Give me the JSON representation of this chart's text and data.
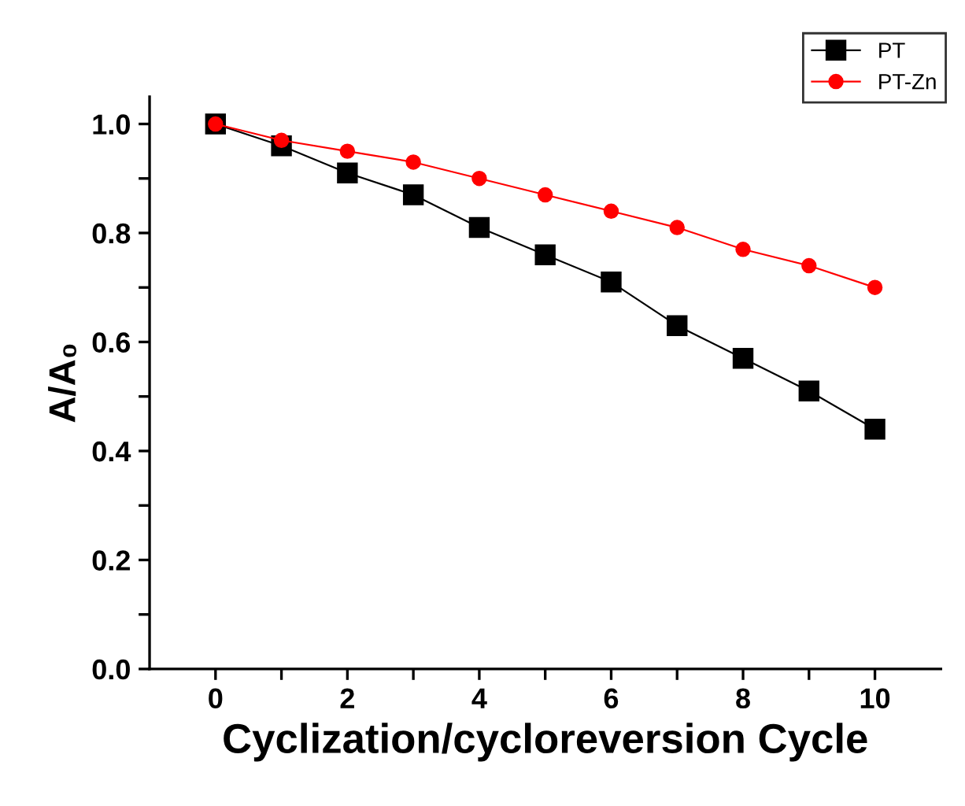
{
  "chart_data": {
    "type": "line",
    "xlabel": "Cyclization/cycloreversion Cycle",
    "ylabel": "A/A₀",
    "x": [
      0,
      1,
      2,
      3,
      4,
      5,
      6,
      7,
      8,
      9,
      10
    ],
    "series": [
      {
        "name": "PT",
        "color": "#000000",
        "marker": "square",
        "values": [
          1.0,
          0.96,
          0.91,
          0.87,
          0.81,
          0.76,
          0.71,
          0.63,
          0.57,
          0.51,
          0.44
        ]
      },
      {
        "name": "PT-Zn",
        "color": "#ff0000",
        "marker": "circle",
        "values": [
          1.0,
          0.97,
          0.95,
          0.93,
          0.9,
          0.87,
          0.84,
          0.81,
          0.77,
          0.74,
          0.7
        ]
      }
    ],
    "xlim": [
      -1,
      11
    ],
    "ylim": [
      0,
      1.05
    ],
    "xticks": [
      0,
      {
        "value": 1,
        "label": null
      },
      2,
      {
        "value": 3,
        "label": null
      },
      4,
      {
        "value": 5,
        "label": null
      },
      6,
      {
        "value": 7,
        "label": null
      },
      8,
      {
        "value": 9,
        "label": null
      },
      10
    ],
    "yticks": [
      {
        "value": 0,
        "label": "0.0"
      },
      {
        "value": 0.1,
        "label": null
      },
      {
        "value": 0.2,
        "label": "0.2"
      },
      {
        "value": 0.3,
        "label": null
      },
      {
        "value": 0.4,
        "label": "0.4"
      },
      {
        "value": 0.5,
        "label": null
      },
      {
        "value": 0.6,
        "label": "0.6"
      },
      {
        "value": 0.7,
        "label": null
      },
      {
        "value": 0.8,
        "label": "0.8"
      },
      {
        "value": 0.9,
        "label": null
      },
      {
        "value": 1.0,
        "label": "1.0"
      }
    ],
    "grid": false,
    "legend": "top right",
    "line_style": "solid"
  }
}
